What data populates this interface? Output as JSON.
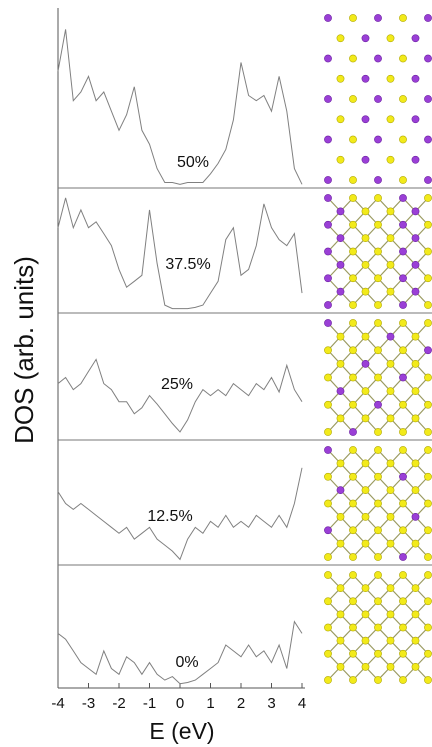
{
  "chart_data": {
    "type": "line",
    "xlabel": "E (eV)",
    "ylabel": "DOS (arb. units)",
    "xlim": [
      -4,
      4
    ],
    "xticks": [
      -4,
      -3,
      -2,
      -1,
      0,
      1,
      2,
      3,
      4
    ],
    "ylim": [
      0,
      1
    ],
    "x": [
      -4,
      -3.75,
      -3.5,
      -3.25,
      -3,
      -2.75,
      -2.5,
      -2.25,
      -2,
      -1.75,
      -1.5,
      -1.25,
      -1,
      -0.75,
      -0.5,
      -0.25,
      0,
      0.25,
      0.5,
      0.75,
      1,
      1.25,
      1.5,
      1.75,
      2,
      2.25,
      2.5,
      2.75,
      3,
      3.25,
      3.5,
      3.75,
      4
    ],
    "series": [
      {
        "name": "50%",
        "color": "#808080",
        "values": [
          0.66,
          0.9,
          0.49,
          0.54,
          0.63,
          0.49,
          0.54,
          0.43,
          0.32,
          0.41,
          0.57,
          0.32,
          0.24,
          0.1,
          0.02,
          0.02,
          0.01,
          0.02,
          0.02,
          0.02,
          0.07,
          0.13,
          0.21,
          0.38,
          0.71,
          0.52,
          0.49,
          0.52,
          0.43,
          0.63,
          0.43,
          0.1,
          0.01
        ]
      },
      {
        "name": "37.5%",
        "color": "#808080",
        "values": [
          0.7,
          0.95,
          0.7,
          0.85,
          0.7,
          0.75,
          0.65,
          0.55,
          0.35,
          0.2,
          0.25,
          0.3,
          0.85,
          0.4,
          0.05,
          0.02,
          0.02,
          0.02,
          0.03,
          0.05,
          0.15,
          0.25,
          0.6,
          0.7,
          0.3,
          0.35,
          0.55,
          0.9,
          0.7,
          0.6,
          0.55,
          0.65,
          0.15
        ]
      },
      {
        "name": "25%",
        "color": "#808080",
        "values": [
          0.45,
          0.5,
          0.4,
          0.45,
          0.55,
          0.65,
          0.45,
          0.4,
          0.3,
          0.3,
          0.2,
          0.25,
          0.35,
          0.28,
          0.2,
          0.12,
          0.05,
          0.15,
          0.3,
          0.4,
          0.35,
          0.4,
          0.35,
          0.45,
          0.4,
          0.35,
          0.45,
          0.4,
          0.5,
          0.38,
          0.6,
          0.4,
          0.3
        ]
      },
      {
        "name": "12.5%",
        "color": "#808080",
        "values": [
          0.6,
          0.5,
          0.45,
          0.5,
          0.45,
          0.4,
          0.35,
          0.3,
          0.25,
          0.3,
          0.2,
          0.25,
          0.3,
          0.2,
          0.15,
          0.1,
          0.03,
          0.2,
          0.3,
          0.25,
          0.35,
          0.3,
          0.4,
          0.3,
          0.35,
          0.3,
          0.4,
          0.35,
          0.3,
          0.4,
          0.3,
          0.5,
          0.8
        ]
      },
      {
        "name": "0%",
        "color": "#808080",
        "values": [
          0.45,
          0.4,
          0.3,
          0.2,
          0.15,
          0.1,
          0.3,
          0.15,
          0.1,
          0.25,
          0.2,
          0.1,
          0.2,
          0.1,
          0.05,
          0.08,
          0.02,
          0.03,
          0.05,
          0.1,
          0.15,
          0.2,
          0.35,
          0.3,
          0.25,
          0.35,
          0.25,
          0.3,
          0.2,
          0.35,
          0.15,
          0.55,
          0.45
        ]
      }
    ]
  }
}
